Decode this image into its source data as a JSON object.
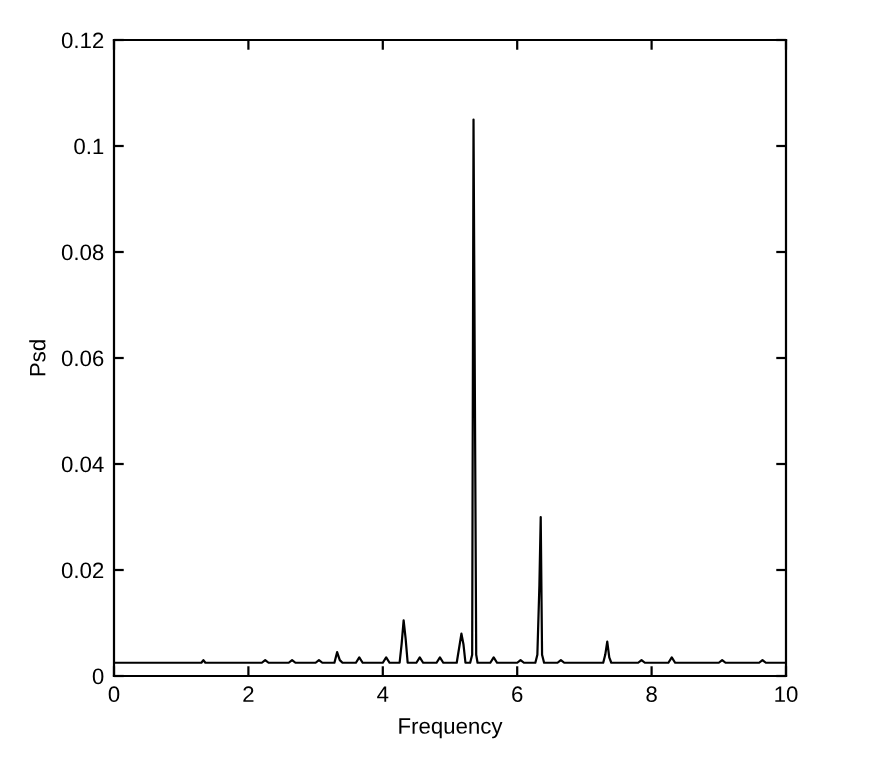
{
  "chart_data": {
    "type": "line",
    "xlabel": "Frequency",
    "ylabel": "Psd",
    "xlim": [
      0,
      10
    ],
    "ylim": [
      0,
      0.12
    ],
    "xticks": [
      0,
      2,
      4,
      6,
      8,
      10
    ],
    "yticks": [
      0,
      0.02,
      0.04,
      0.06,
      0.08,
      0.1,
      0.12
    ],
    "grid": false,
    "legend": false,
    "marker": "none",
    "line_style": "solid",
    "series": [
      {
        "color": "#000000",
        "x": [
          0,
          1.3,
          1.33,
          1.36,
          2.2,
          2.25,
          2.3,
          2.6,
          2.65,
          2.7,
          3.0,
          3.05,
          3.1,
          3.28,
          3.32,
          3.36,
          3.4,
          3.6,
          3.65,
          3.7,
          4.0,
          4.05,
          4.1,
          4.25,
          4.28,
          4.31,
          4.34,
          4.37,
          4.5,
          4.55,
          4.6,
          4.8,
          4.85,
          4.9,
          5.1,
          5.17,
          5.2,
          5.23,
          5.3,
          5.33,
          5.35,
          5.37,
          5.39,
          5.41,
          5.44,
          5.6,
          5.65,
          5.7,
          6.0,
          6.05,
          6.1,
          6.27,
          6.3,
          6.33,
          6.35,
          6.37,
          6.4,
          6.6,
          6.65,
          6.7,
          7.28,
          7.31,
          7.34,
          7.37,
          7.4,
          7.8,
          7.85,
          7.9,
          8.25,
          8.3,
          8.35,
          9.0,
          9.05,
          9.1,
          9.6,
          9.65,
          9.7,
          10
        ],
        "values": [
          0.0025,
          0.0025,
          0.003,
          0.0025,
          0.0025,
          0.003,
          0.0025,
          0.0025,
          0.003,
          0.0025,
          0.0025,
          0.003,
          0.0025,
          0.0025,
          0.0045,
          0.003,
          0.0025,
          0.0025,
          0.0035,
          0.0025,
          0.0025,
          0.0035,
          0.0025,
          0.0025,
          0.006,
          0.0105,
          0.007,
          0.0025,
          0.0025,
          0.0035,
          0.0025,
          0.0025,
          0.0035,
          0.0025,
          0.0025,
          0.008,
          0.006,
          0.0025,
          0.0025,
          0.004,
          0.105,
          0.054,
          0.004,
          0.0025,
          0.0025,
          0.0025,
          0.0035,
          0.0025,
          0.0025,
          0.003,
          0.0025,
          0.0025,
          0.004,
          0.017,
          0.03,
          0.004,
          0.0025,
          0.0025,
          0.003,
          0.0025,
          0.0025,
          0.004,
          0.0065,
          0.0035,
          0.0025,
          0.0025,
          0.003,
          0.0025,
          0.0025,
          0.0035,
          0.0025,
          0.0025,
          0.003,
          0.0025,
          0.0025,
          0.003,
          0.0025,
          0.0025
        ]
      }
    ]
  }
}
